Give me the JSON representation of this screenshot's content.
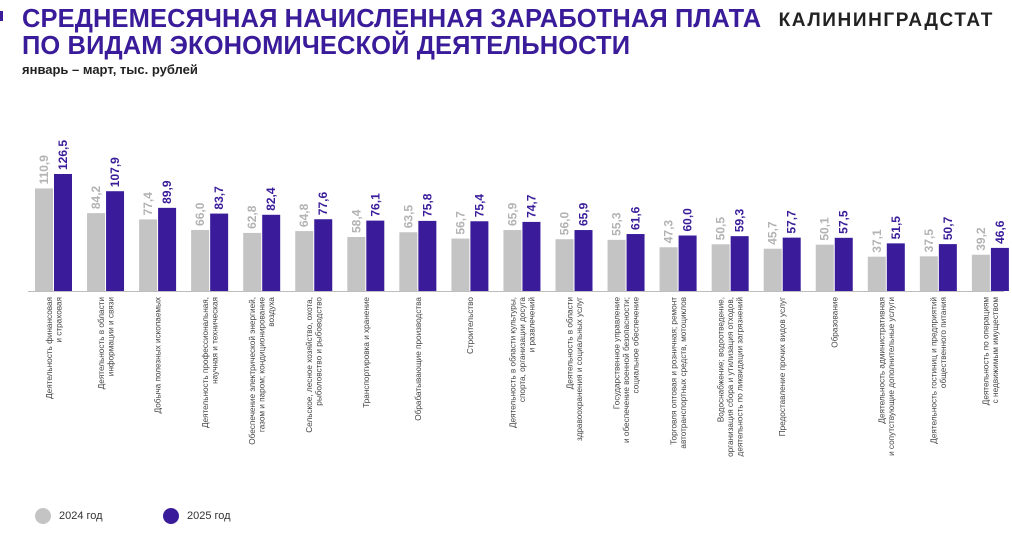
{
  "header": {
    "title_line1": "СРЕДНЕМЕСЯЧНАЯ НАЧИСЛЕННАЯ ЗАРАБОТНАЯ ПЛАТА",
    "title_line2": "ПО ВИДАМ ЭКОНОМИЧЕСКОЙ ДЕЯТЕЛЬНОСТИ",
    "subtitle": "январь – март, тыс. рублей",
    "brand": "КАЛИНИНГРАДСТАТ"
  },
  "colors": {
    "accent": "#3a1c9a",
    "series_2024": "#c4c4c4",
    "series_2025": "#3a1c9a"
  },
  "chart_data": {
    "type": "bar",
    "categories": [
      [
        "Деятельность финансовая",
        "и страховая"
      ],
      [
        "Деятельность в области",
        "информации и связи"
      ],
      [
        "Добыча полезных ископаемых"
      ],
      [
        "Деятельность профессиональная,",
        "научная и техническая"
      ],
      [
        "Обеспечение электрической энергией,",
        "газом и паром; кондиционирование",
        "воздуха"
      ],
      [
        "Сельское, лесное хозяйство, охота,",
        "рыболовство и рыбоводство"
      ],
      [
        "Транспортировка и хранение"
      ],
      [
        "Обрабатывающие производства"
      ],
      [
        "Строительство"
      ],
      [
        "Деятельность в области культуры,",
        "спорта, организации досуга",
        "и развлечений"
      ],
      [
        "Деятельность в области",
        "здравоохранения и социальных услуг"
      ],
      [
        "Государственное управление",
        "и обеспечение военной безопасности;",
        "социальное обеспечение"
      ],
      [
        "Торговля оптовая и розничная; ремонт",
        "автотранспортных средств, мотоциклов"
      ],
      [
        "Водоснабжение; водоотведение,",
        "организация сбора и утилизация отходов,",
        "деятельность по ликвидации загрязнений"
      ],
      [
        "Предоставление прочих видов услуг"
      ],
      [
        "Образование"
      ],
      [
        "Деятельность административная",
        "и сопутствующие дополнительные услуги"
      ],
      [
        "Деятельность гостиниц и предприятий",
        "общественного питания"
      ],
      [
        "Деятельность по операциям",
        "с недвижимым имуществом"
      ]
    ],
    "series": [
      {
        "name": "2024 год",
        "values": [
          110.9,
          84.2,
          77.4,
          66.0,
          62.8,
          64.8,
          58.4,
          63.5,
          56.7,
          65.9,
          56.0,
          55.3,
          47.3,
          50.5,
          45.7,
          50.1,
          37.1,
          37.5,
          39.2
        ]
      },
      {
        "name": "2025 год",
        "values": [
          126.5,
          107.9,
          89.9,
          83.7,
          82.4,
          77.6,
          76.1,
          75.8,
          75.4,
          74.7,
          65.9,
          61.6,
          60.0,
          59.3,
          57.7,
          57.5,
          51.5,
          50.7,
          46.6
        ]
      }
    ],
    "ylim": [
      0,
      126.5
    ],
    "decimal_separator": ","
  },
  "legend": {
    "label_2024": "2024 год",
    "label_2025": "2025 год"
  }
}
